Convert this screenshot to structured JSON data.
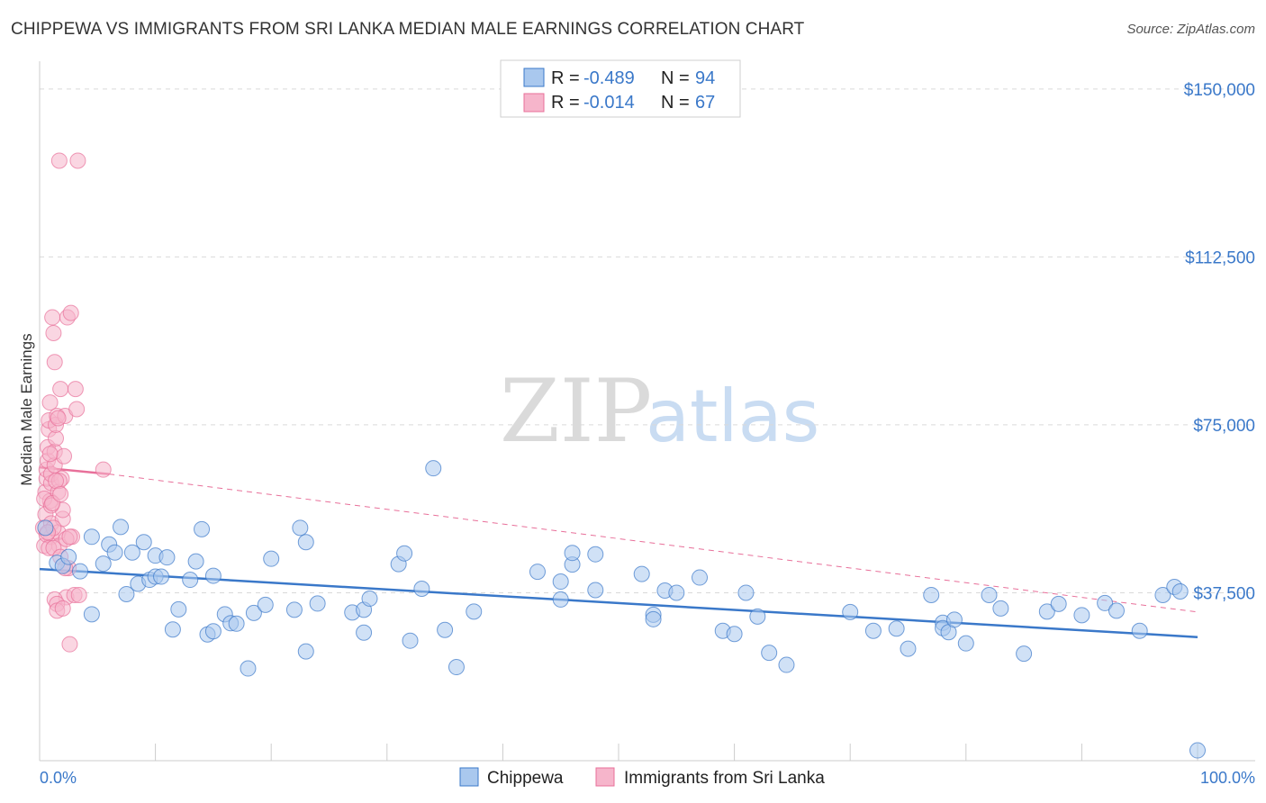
{
  "title": "CHIPPEWA VS IMMIGRANTS FROM SRI LANKA MEDIAN MALE EARNINGS CORRELATION CHART",
  "source": "Source: ZipAtlas.com",
  "watermark": {
    "zip": "ZIP",
    "atlas": "atlas"
  },
  "colors": {
    "blue": "#3a78c9",
    "blue_fill": "#a9c8ee",
    "pink": "#e8709a",
    "pink_fill": "#f6b5cb",
    "grid": "#d9d9d9"
  },
  "legend": {
    "items": [
      {
        "r_label": "R =",
        "r_value": "-0.489",
        "n_label": "N =",
        "n_value": "94"
      },
      {
        "r_label": "R =",
        "r_value": "-0.014",
        "n_label": "N =",
        "n_value": "67"
      }
    ]
  },
  "bottom_legend": [
    "Chippewa",
    "Immigrants from Sri Lanka"
  ],
  "chart_data": {
    "type": "scatter",
    "title": "CHIPPEWA VS IMMIGRANTS FROM SRI LANKA MEDIAN MALE EARNINGS CORRELATION CHART",
    "xlabel": "",
    "ylabel": "Median Male Earnings",
    "xlim": [
      0,
      100
    ],
    "ylim": [
      0,
      155000
    ],
    "x_tick_labels": [
      "0.0%",
      "100.0%"
    ],
    "y_ticks": [
      37500,
      75000,
      112500,
      150000
    ],
    "y_tick_labels": [
      "$37,500",
      "$75,000",
      "$112,500",
      "$150,000"
    ],
    "series": [
      {
        "name": "Chippewa",
        "r": -0.489,
        "n": 94,
        "trend": {
          "x": [
            0,
            100
          ],
          "y": [
            42800,
            27600
          ]
        },
        "points": [
          [
            0.5,
            52000
          ],
          [
            1.5,
            44200
          ],
          [
            2,
            43500
          ],
          [
            2.5,
            45500
          ],
          [
            3.5,
            42300
          ],
          [
            4.5,
            50000
          ],
          [
            4.5,
            32700
          ],
          [
            5.5,
            44000
          ],
          [
            6,
            48300
          ],
          [
            6.5,
            46500
          ],
          [
            7,
            52200
          ],
          [
            7.5,
            37200
          ],
          [
            8,
            46500
          ],
          [
            8.5,
            39500
          ],
          [
            9,
            48800
          ],
          [
            9.5,
            40400
          ],
          [
            10,
            45800
          ],
          [
            10,
            41100
          ],
          [
            10.5,
            41100
          ],
          [
            11,
            45400
          ],
          [
            11.5,
            29300
          ],
          [
            12,
            33800
          ],
          [
            13,
            40400
          ],
          [
            13.5,
            44500
          ],
          [
            14,
            51700
          ],
          [
            14.5,
            28200
          ],
          [
            15,
            41300
          ],
          [
            15,
            28900
          ],
          [
            16,
            32700
          ],
          [
            16.5,
            30700
          ],
          [
            17,
            30600
          ],
          [
            18,
            20600
          ],
          [
            18.5,
            33000
          ],
          [
            19.5,
            34800
          ],
          [
            20,
            45100
          ],
          [
            22,
            33700
          ],
          [
            22.5,
            52000
          ],
          [
            23,
            48800
          ],
          [
            23,
            24400
          ],
          [
            24,
            35100
          ],
          [
            27,
            33100
          ],
          [
            28,
            33700
          ],
          [
            28,
            28600
          ],
          [
            28.5,
            36200
          ],
          [
            31,
            43900
          ],
          [
            31.5,
            46300
          ],
          [
            32,
            26800
          ],
          [
            33,
            38400
          ],
          [
            34,
            65300
          ],
          [
            35,
            29200
          ],
          [
            36,
            20900
          ],
          [
            37.5,
            33300
          ],
          [
            43,
            42200
          ],
          [
            45,
            36000
          ],
          [
            45,
            40000
          ],
          [
            46,
            43800
          ],
          [
            46,
            46400
          ],
          [
            48,
            38100
          ],
          [
            48,
            46100
          ],
          [
            52,
            41700
          ],
          [
            53,
            32600
          ],
          [
            53,
            31600
          ],
          [
            54,
            38000
          ],
          [
            55,
            37500
          ],
          [
            57,
            40900
          ],
          [
            59,
            29000
          ],
          [
            60,
            28300
          ],
          [
            61,
            37500
          ],
          [
            62,
            32200
          ],
          [
            63,
            24100
          ],
          [
            64.5,
            21400
          ],
          [
            70,
            33200
          ],
          [
            72,
            29000
          ],
          [
            74,
            29500
          ],
          [
            75,
            25000
          ],
          [
            77,
            37000
          ],
          [
            78,
            30800
          ],
          [
            78,
            29600
          ],
          [
            78.5,
            28700
          ],
          [
            79,
            31500
          ],
          [
            80,
            26200
          ],
          [
            82,
            37000
          ],
          [
            83,
            34000
          ],
          [
            85,
            23900
          ],
          [
            87,
            33300
          ],
          [
            88,
            35000
          ],
          [
            90,
            32500
          ],
          [
            92,
            35200
          ],
          [
            93,
            33500
          ],
          [
            95,
            29000
          ],
          [
            97,
            37000
          ],
          [
            98,
            38800
          ],
          [
            98.5,
            37800
          ],
          [
            100,
            2300
          ]
        ]
      },
      {
        "name": "Immigrants from Sri Lanka",
        "r": -0.014,
        "n": 67,
        "trend": {
          "x": [
            0,
            6
          ],
          "y": [
            65500,
            64000
          ]
        },
        "trend_dashed": {
          "x": [
            6,
            100
          ],
          "y": [
            64000,
            33200
          ]
        },
        "points": [
          [
            0.3,
            52000
          ],
          [
            0.4,
            48000
          ],
          [
            0.5,
            55000
          ],
          [
            0.5,
            60000
          ],
          [
            0.6,
            63000
          ],
          [
            0.6,
            65000
          ],
          [
            0.7,
            67000
          ],
          [
            0.7,
            70000
          ],
          [
            0.8,
            74000
          ],
          [
            0.8,
            76000
          ],
          [
            0.9,
            80000
          ],
          [
            0.9,
            58000
          ],
          [
            1,
            50000
          ],
          [
            1,
            53000
          ],
          [
            1,
            62000
          ],
          [
            1,
            64000
          ],
          [
            1.1,
            99000
          ],
          [
            1.2,
            95500
          ],
          [
            1.3,
            89000
          ],
          [
            1.3,
            66000
          ],
          [
            1.3,
            69000
          ],
          [
            1.4,
            72000
          ],
          [
            1.4,
            75000
          ],
          [
            1.5,
            77000
          ],
          [
            1.6,
            60000
          ],
          [
            1.6,
            51000
          ],
          [
            1.7,
            48000
          ],
          [
            1.7,
            134000
          ],
          [
            1.8,
            83000
          ],
          [
            1.9,
            63000
          ],
          [
            2,
            54000
          ],
          [
            2,
            56000
          ],
          [
            2.1,
            68000
          ],
          [
            2.2,
            77000
          ],
          [
            2.3,
            36500
          ],
          [
            2.4,
            99000
          ],
          [
            2.5,
            43000
          ],
          [
            2.6,
            26000
          ],
          [
            2.7,
            100000
          ],
          [
            2.8,
            50000
          ],
          [
            3,
            37000
          ],
          [
            3.1,
            83000
          ],
          [
            3.2,
            78500
          ],
          [
            3.3,
            134000
          ],
          [
            5.5,
            65000
          ],
          [
            0.4,
            58500
          ],
          [
            0.6,
            50500
          ],
          [
            0.8,
            47500
          ],
          [
            1,
            57000
          ],
          [
            1.2,
            47500
          ],
          [
            1.3,
            36000
          ],
          [
            1.5,
            35000
          ],
          [
            1.5,
            33500
          ],
          [
            1.7,
            62500
          ],
          [
            1.8,
            45500
          ],
          [
            2,
            34000
          ],
          [
            2.2,
            43000
          ],
          [
            1.1,
            57500
          ],
          [
            0.9,
            68500
          ],
          [
            1.4,
            62500
          ],
          [
            1.6,
            76500
          ],
          [
            1.8,
            59500
          ],
          [
            2.3,
            49500
          ],
          [
            1.2,
            52000
          ],
          [
            0.7,
            51000
          ],
          [
            2.6,
            50000
          ],
          [
            3.4,
            37000
          ]
        ]
      }
    ]
  }
}
